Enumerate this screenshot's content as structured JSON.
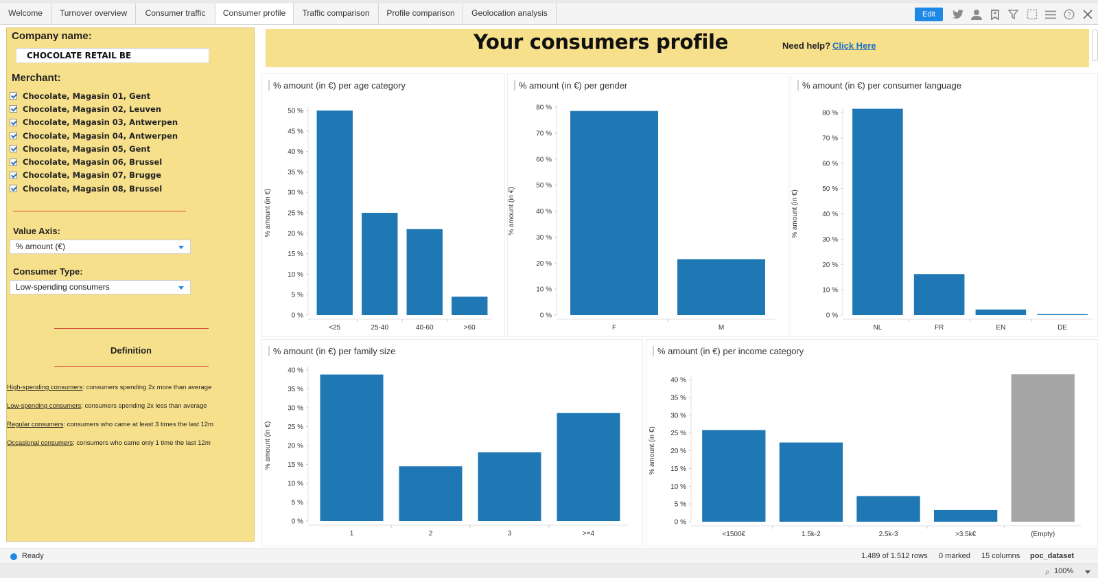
{
  "tabs": [
    {
      "label": "Welcome",
      "active": false
    },
    {
      "label": "Turnover overview",
      "active": false
    },
    {
      "label": "Consumer traffic",
      "active": false
    },
    {
      "label": "Consumer profile",
      "active": true
    },
    {
      "label": "Traffic comparison",
      "active": false
    },
    {
      "label": "Profile comparison",
      "active": false
    },
    {
      "label": "Geolocation analysis",
      "active": false
    }
  ],
  "toolbar": {
    "edit_label": "Edit",
    "icons": [
      "twitter-icon",
      "user-icon",
      "bookmark-icon",
      "filter-icon",
      "selection-icon",
      "menu-icon",
      "help-icon",
      "close-icon"
    ]
  },
  "left_panel": {
    "company_label": "Company name:",
    "company_value": "CHOCOLATE RETAIL BE",
    "merchant_label": "Merchant:",
    "merchants": [
      {
        "label": "Chocolate, Magasin 01, Gent",
        "checked": true
      },
      {
        "label": "Chocolate, Magasin 02, Leuven",
        "checked": true
      },
      {
        "label": "Chocolate, Magasin 03, Antwerpen",
        "checked": true
      },
      {
        "label": "Chocolate, Magasin 04, Antwerpen",
        "checked": true
      },
      {
        "label": "Chocolate, Magasin 05, Gent",
        "checked": true
      },
      {
        "label": "Chocolate, Magasin 06, Brussel",
        "checked": true
      },
      {
        "label": "Chocolate, Magasin 07, Brugge",
        "checked": true
      },
      {
        "label": "Chocolate, Magasin 08, Brussel",
        "checked": true
      }
    ],
    "value_axis_label": "Value Axis:",
    "value_axis_selected": "% amount (€)",
    "consumer_type_label": "Consumer Type:",
    "consumer_type_selected": "Low-spending consumers",
    "definition_title": "Definition",
    "definitions": [
      {
        "term": "High-spending consumers",
        "text": ": consumers spending 2x more than average"
      },
      {
        "term": "Low-spending consumers",
        "text": ": consumers spending 2x less than average"
      },
      {
        "term": "Regular consumers",
        "text": ": consumers who came at least 3 times the last 12m"
      },
      {
        "term": "Occasional consumers",
        "text": ": consumers who came only 1 time the last 12m"
      }
    ]
  },
  "banner": {
    "title": "Your consumers profile",
    "help_text": "Need help?",
    "help_link": "Click Here"
  },
  "colors": {
    "bar": "#1f77b4",
    "bar_empty": "#a6a6a6",
    "panel_yellow": "#f7e08c",
    "accent": "#1e88e5"
  },
  "chart_data": [
    {
      "id": "age",
      "type": "bar",
      "title": "% amount (in €) per age category",
      "ylabel": "% amount (in €)",
      "categories": [
        "<25",
        "25-40",
        "40-60",
        ">60"
      ],
      "values": [
        50,
        25,
        21,
        4.5
      ],
      "ylim": [
        0,
        50
      ],
      "yticks": [
        0,
        5,
        10,
        15,
        20,
        25,
        30,
        35,
        40,
        45,
        50
      ],
      "grid": false
    },
    {
      "id": "gender",
      "type": "bar",
      "title": "% amount (in €) per gender",
      "ylabel": "% amount (in €)",
      "categories": [
        "F",
        "M"
      ],
      "values": [
        78.5,
        21.5
      ],
      "ylim": [
        0,
        80
      ],
      "yticks": [
        0,
        10,
        20,
        30,
        40,
        50,
        60,
        70,
        80
      ],
      "grid": false
    },
    {
      "id": "language",
      "type": "bar",
      "title": "% amount (in €) per consumer language",
      "ylabel": "% amount (in €)",
      "categories": [
        "NL",
        "FR",
        "EN",
        "DE"
      ],
      "values": [
        81.5,
        16.2,
        2.2,
        0.4
      ],
      "ylim": [
        0,
        80
      ],
      "yticks": [
        0,
        10,
        20,
        30,
        40,
        50,
        60,
        70,
        80
      ],
      "grid": false
    },
    {
      "id": "family",
      "type": "bar",
      "title": "% amount (in €) per family size",
      "ylabel": "% amount (in €)",
      "categories": [
        "1",
        "2",
        "3",
        ">=4"
      ],
      "values": [
        38.8,
        14.5,
        18.2,
        28.6
      ],
      "ylim": [
        0,
        40
      ],
      "yticks": [
        0,
        5,
        10,
        15,
        20,
        25,
        30,
        35,
        40
      ],
      "grid": false
    },
    {
      "id": "income",
      "type": "bar",
      "title": "% amount (in €) per income category",
      "ylabel": "% amount (in €)",
      "categories": [
        "<1500€",
        "1.5k-2",
        "2.5k-3",
        ">3.5k€",
        "(Empty)"
      ],
      "values": [
        25.8,
        22.3,
        7.2,
        3.3,
        41.5
      ],
      "highlight": [
        false,
        false,
        false,
        false,
        true
      ],
      "ylim": [
        0,
        40
      ],
      "yticks": [
        0,
        5,
        10,
        15,
        20,
        25,
        30,
        35,
        40
      ],
      "grid": false
    }
  ],
  "status": {
    "ready": "Ready",
    "rows": "1.489 of 1.512 rows",
    "marked": "0 marked",
    "columns": "15 columns",
    "dataset": "poc_dataset",
    "zoom": "100%"
  }
}
